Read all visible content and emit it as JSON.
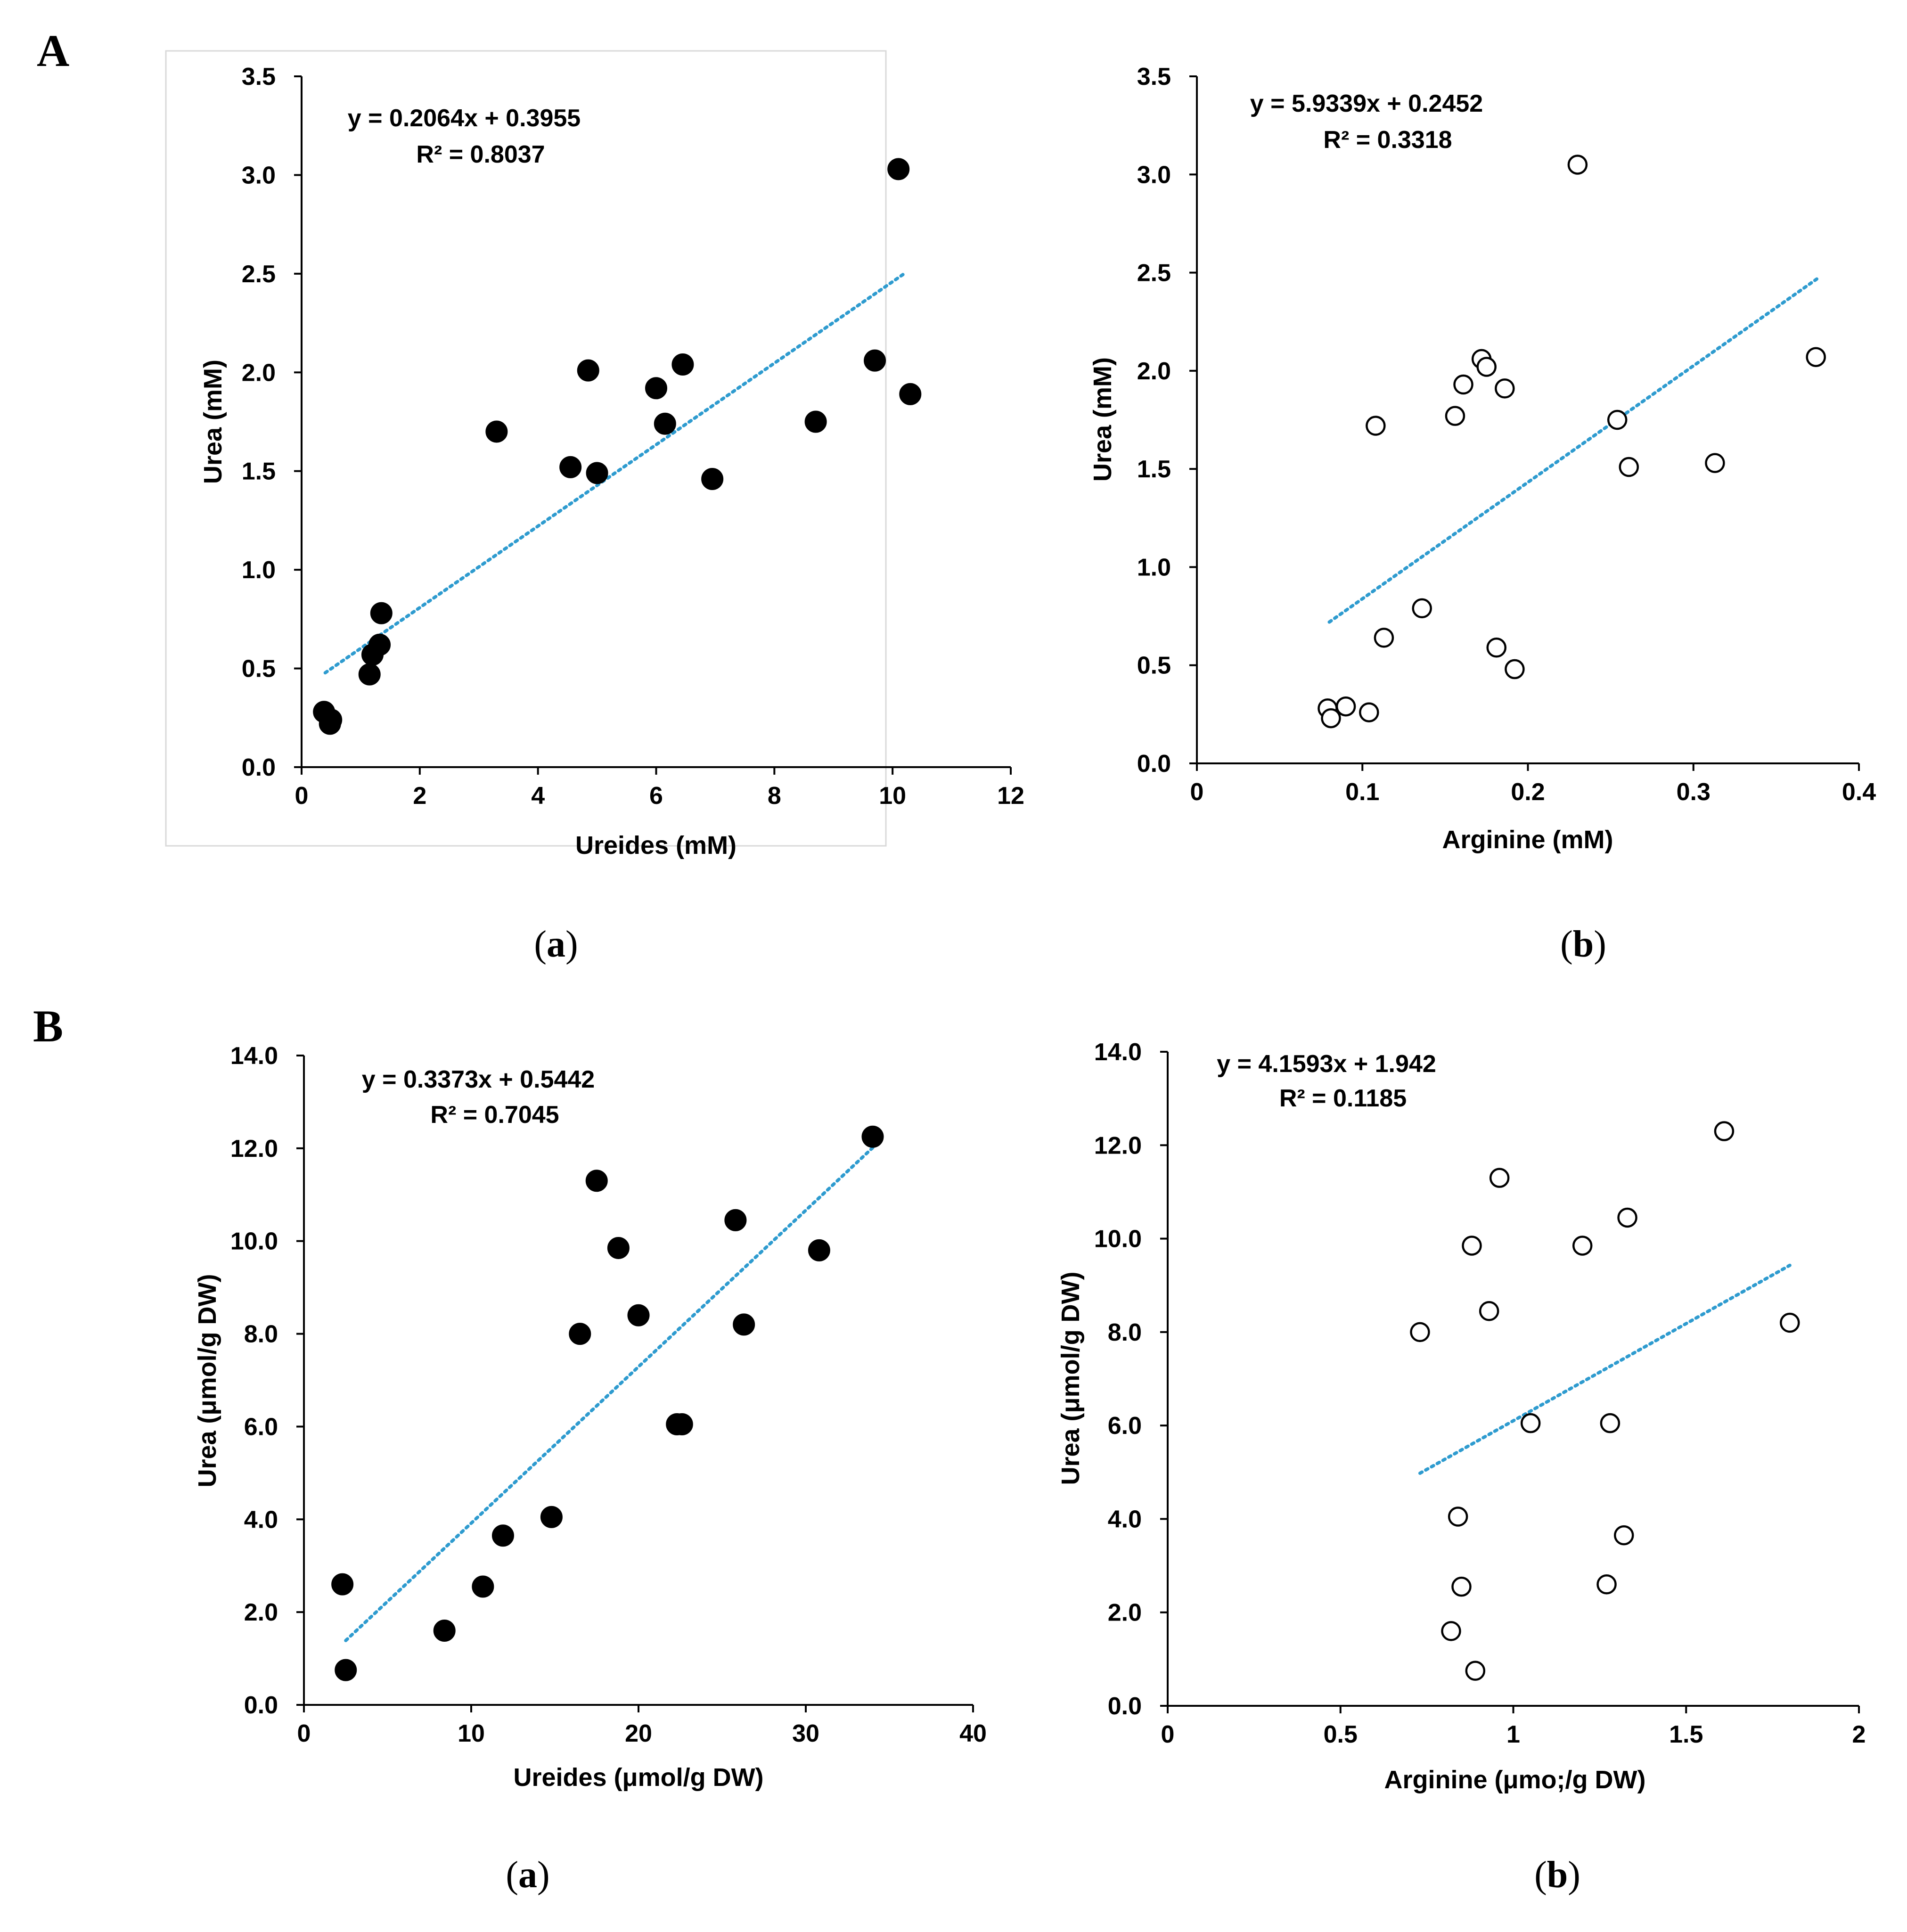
{
  "figure": {
    "panel_A": "A",
    "panel_B": "B"
  },
  "chart_data": [
    {
      "id": "Aa",
      "type": "scatter",
      "caption": "a",
      "xlabel": "Ureides (mM)",
      "ylabel": "Urea (mM)",
      "xlim": [
        0,
        12
      ],
      "ylim": [
        0,
        3.5
      ],
      "xticks": [
        0,
        2,
        4,
        6,
        8,
        10,
        12
      ],
      "xtick_labels": [
        "0",
        "2",
        "4",
        "6",
        "8",
        "10",
        "12"
      ],
      "yticks": [
        0,
        0.5,
        1.0,
        1.5,
        2.0,
        2.5,
        3.0,
        3.5
      ],
      "ytick_labels": [
        "0.0",
        "0.5",
        "1.0",
        "1.5",
        "2.0",
        "2.5",
        "3.0",
        "3.5"
      ],
      "marker": "filled",
      "equation": "y = 0.2064x + 0.3955",
      "r2": "R² = 0.8037",
      "trendline": {
        "slope": 0.2064,
        "intercept": 0.3955,
        "x_range": [
          0.4,
          10.2
        ]
      },
      "points": [
        [
          10.1,
          3.03
        ],
        [
          0.38,
          0.28
        ],
        [
          0.5,
          0.24
        ],
        [
          0.48,
          0.22
        ],
        [
          1.15,
          0.47
        ],
        [
          1.2,
          0.57
        ],
        [
          1.32,
          0.62
        ],
        [
          1.35,
          0.78
        ],
        [
          3.3,
          1.7
        ],
        [
          4.55,
          1.52
        ],
        [
          4.85,
          2.01
        ],
        [
          5.0,
          1.49
        ],
        [
          6.0,
          1.92
        ],
        [
          6.15,
          1.74
        ],
        [
          6.45,
          2.04
        ],
        [
          6.95,
          1.46
        ],
        [
          8.7,
          1.75
        ],
        [
          9.7,
          2.06
        ],
        [
          10.3,
          1.89
        ]
      ],
      "chart_border": true
    },
    {
      "id": "Ab",
      "type": "scatter",
      "caption": "b",
      "xlabel": "Arginine (mM)",
      "ylabel": "Urea (mM)",
      "xlim": [
        0,
        0.4
      ],
      "ylim": [
        0,
        3.5
      ],
      "xticks": [
        0,
        0.1,
        0.2,
        0.3,
        0.4
      ],
      "xtick_labels": [
        "0",
        "0.1",
        "0.2",
        "0.3",
        "0.4"
      ],
      "yticks": [
        0,
        0.5,
        1.0,
        1.5,
        2.0,
        2.5,
        3.0,
        3.5
      ],
      "ytick_labels": [
        "0.0",
        "0.5",
        "1.0",
        "1.5",
        "2.0",
        "2.5",
        "3.0",
        "3.5"
      ],
      "marker": "open",
      "equation": "y = 5.9339x + 0.2452",
      "r2": "R² = 0.3318",
      "trendline": {
        "slope": 5.9339,
        "intercept": 0.2452,
        "x_range": [
          0.08,
          0.375
        ]
      },
      "points": [
        [
          0.23,
          3.05
        ],
        [
          0.172,
          2.06
        ],
        [
          0.175,
          2.02
        ],
        [
          0.161,
          1.93
        ],
        [
          0.186,
          1.91
        ],
        [
          0.156,
          1.77
        ],
        [
          0.108,
          1.72
        ],
        [
          0.254,
          1.75
        ],
        [
          0.261,
          1.51
        ],
        [
          0.313,
          1.53
        ],
        [
          0.374,
          2.07
        ],
        [
          0.136,
          0.79
        ],
        [
          0.113,
          0.64
        ],
        [
          0.181,
          0.59
        ],
        [
          0.192,
          0.48
        ],
        [
          0.079,
          0.28
        ],
        [
          0.09,
          0.29
        ],
        [
          0.104,
          0.26
        ],
        [
          0.081,
          0.23
        ]
      ],
      "chart_border": false
    },
    {
      "id": "Ba",
      "type": "scatter",
      "caption": "a",
      "xlabel": "Ureides (μmol/g DW)",
      "ylabel": "Urea (μmol/g DW)",
      "xlim": [
        0,
        40
      ],
      "ylim": [
        0,
        14
      ],
      "xticks": [
        0,
        10,
        20,
        30,
        40
      ],
      "xtick_labels": [
        "0",
        "10",
        "20",
        "30",
        "40"
      ],
      "yticks": [
        0,
        2,
        4,
        6,
        8,
        10,
        12,
        14
      ],
      "ytick_labels": [
        "0.0",
        "2.0",
        "4.0",
        "6.0",
        "8.0",
        "10.0",
        "12.0",
        "14.0"
      ],
      "marker": "filled",
      "equation": "y = 0.3373x + 0.5442",
      "r2": "R² = 0.7045",
      "trendline": {
        "slope": 0.3373,
        "intercept": 0.5442,
        "x_range": [
          2.5,
          34
        ]
      },
      "points": [
        [
          34.0,
          12.25
        ],
        [
          17.5,
          11.3
        ],
        [
          18.8,
          9.85
        ],
        [
          25.8,
          10.45
        ],
        [
          30.8,
          9.8
        ],
        [
          20.0,
          8.4
        ],
        [
          16.5,
          8.0
        ],
        [
          26.3,
          8.2
        ],
        [
          22.3,
          6.05
        ],
        [
          22.6,
          6.05
        ],
        [
          14.8,
          4.05
        ],
        [
          11.9,
          3.65
        ],
        [
          10.7,
          2.55
        ],
        [
          2.3,
          2.6
        ],
        [
          8.4,
          1.6
        ],
        [
          2.5,
          0.75
        ]
      ],
      "chart_border": false
    },
    {
      "id": "Bb",
      "type": "scatter",
      "caption": "b",
      "xlabel": "Arginine (μmo;/g DW)",
      "ylabel": "Urea (μmol/g DW)",
      "xlim": [
        0,
        2
      ],
      "ylim": [
        0,
        14
      ],
      "xticks": [
        0,
        0.5,
        1,
        1.5,
        2
      ],
      "xtick_labels": [
        "0",
        "0.5",
        "1",
        "1.5",
        "2"
      ],
      "yticks": [
        0,
        2,
        4,
        6,
        8,
        10,
        12,
        14
      ],
      "ytick_labels": [
        "0.0",
        "2.0",
        "4.0",
        "6.0",
        "8.0",
        "10.0",
        "12.0",
        "14.0"
      ],
      "marker": "open",
      "equation": "y = 4.1593x + 1.942",
      "r2": "R² = 0.1185",
      "trendline": {
        "slope": 4.1593,
        "intercept": 1.942,
        "x_range": [
          0.73,
          1.8
        ]
      },
      "points": [
        [
          1.61,
          12.3
        ],
        [
          0.96,
          11.3
        ],
        [
          0.88,
          9.85
        ],
        [
          1.2,
          9.85
        ],
        [
          1.33,
          10.45
        ],
        [
          0.93,
          8.45
        ],
        [
          0.73,
          8.0
        ],
        [
          1.8,
          8.2
        ],
        [
          1.05,
          6.05
        ],
        [
          1.28,
          6.05
        ],
        [
          0.84,
          4.05
        ],
        [
          1.32,
          3.65
        ],
        [
          0.85,
          2.55
        ],
        [
          1.27,
          2.6
        ],
        [
          0.82,
          1.6
        ],
        [
          0.89,
          0.75
        ]
      ],
      "chart_border": false
    }
  ]
}
